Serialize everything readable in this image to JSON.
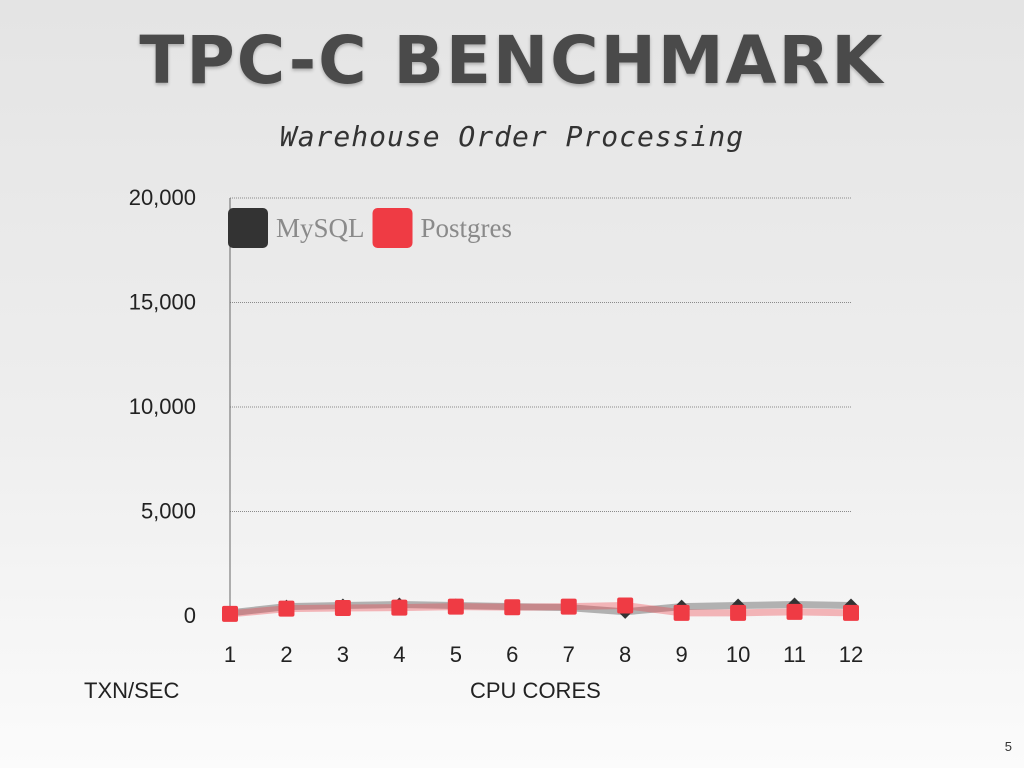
{
  "slide": {
    "title": "TPC-C BENCHMARK",
    "subtitle": "Warehouse Order Processing",
    "page_number": "5"
  },
  "chart_data": {
    "type": "line",
    "title": "",
    "xlabel": "CPU CORES",
    "ylabel": "TXN/SEC",
    "x": [
      1,
      2,
      3,
      4,
      5,
      6,
      7,
      8,
      9,
      10,
      11,
      12
    ],
    "ylim": [
      0,
      20000
    ],
    "yticks": [
      0,
      5000,
      10000,
      15000,
      20000
    ],
    "ytick_labels": [
      "0",
      "5,000",
      "10,000",
      "15,000",
      "20,000"
    ],
    "grid": true,
    "legend_position": "top-left",
    "series": [
      {
        "name": "MySQL",
        "color": "#333333",
        "marker": "diamond",
        "values": [
          150,
          450,
          500,
          550,
          500,
          450,
          400,
          200,
          450,
          500,
          550,
          500
        ]
      },
      {
        "name": "Postgres",
        "color": "#ef3b44",
        "marker": "square",
        "values": [
          100,
          350,
          380,
          400,
          450,
          420,
          450,
          500,
          150,
          150,
          200,
          150
        ]
      }
    ]
  }
}
